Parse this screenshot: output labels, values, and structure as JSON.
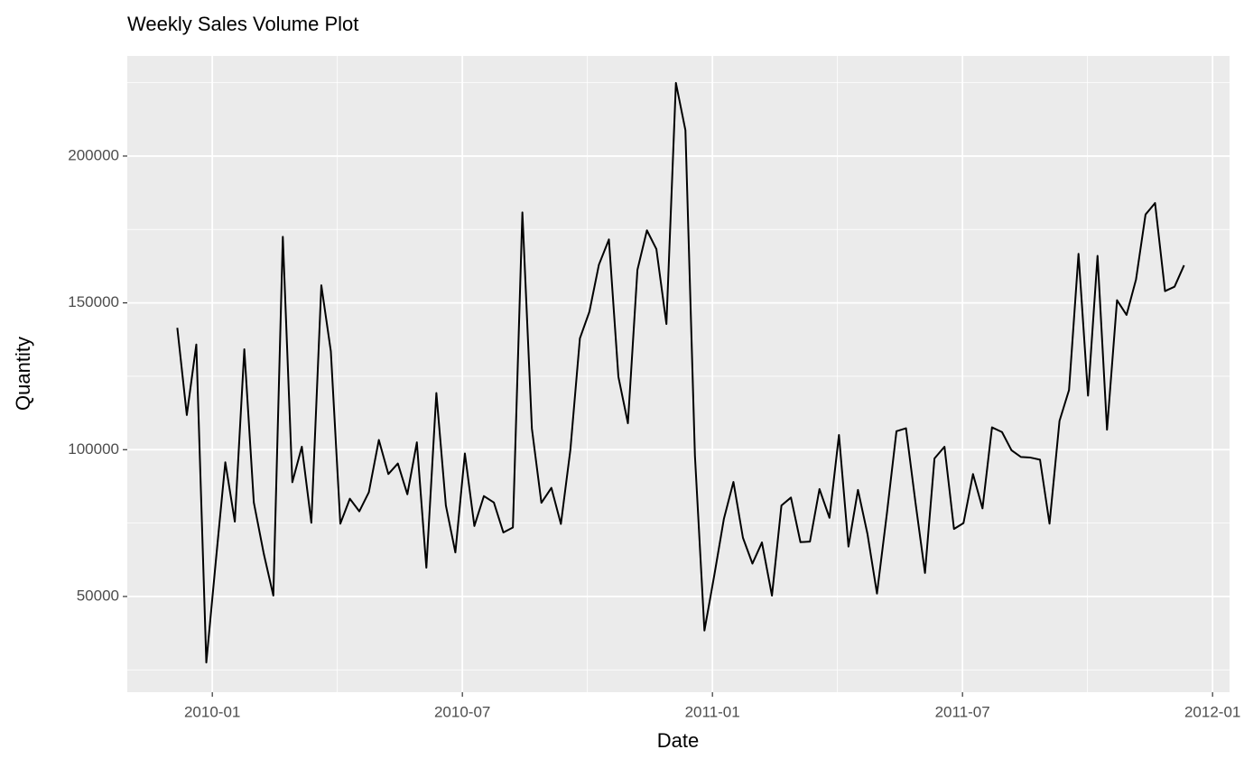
{
  "chart_data": {
    "type": "line",
    "title": "Weekly Sales Volume Plot",
    "x_label": "Date",
    "y_label": "Quantity",
    "color": "#000000",
    "grid": true,
    "xlim": [
      2009.83,
      2012.034
    ],
    "ylim": [
      17400,
      234100
    ],
    "xticks": [
      {
        "value": 2010.0,
        "label": "2010-01"
      },
      {
        "value": 2010.5,
        "label": "2010-07"
      },
      {
        "value": 2011.0,
        "label": "2011-01"
      },
      {
        "value": 2011.5,
        "label": "2011-07"
      },
      {
        "value": 2012.0,
        "label": "2012-01"
      }
    ],
    "yticks": [
      50000,
      100000,
      150000,
      200000
    ],
    "x": [
      2009.93,
      2009.949,
      2009.968,
      2009.988,
      2010.007,
      2010.026,
      2010.045,
      2010.064,
      2010.083,
      2010.103,
      2010.122,
      2010.141,
      2010.16,
      2010.179,
      2010.198,
      2010.218,
      2010.237,
      2010.256,
      2010.275,
      2010.294,
      2010.313,
      2010.333,
      2010.352,
      2010.371,
      2010.39,
      2010.409,
      2010.428,
      2010.448,
      2010.467,
      2010.486,
      2010.505,
      2010.524,
      2010.543,
      2010.563,
      2010.582,
      2010.601,
      2010.62,
      2010.639,
      2010.658,
      2010.678,
      2010.697,
      2010.716,
      2010.735,
      2010.754,
      2010.773,
      2010.793,
      2010.812,
      2010.831,
      2010.85,
      2010.869,
      2010.888,
      2010.908,
      2010.927,
      2010.946,
      2010.965,
      2010.984,
      2011.004,
      2011.023,
      2011.042,
      2011.061,
      2011.08,
      2011.099,
      2011.119,
      2011.138,
      2011.157,
      2011.176,
      2011.195,
      2011.214,
      2011.234,
      2011.253,
      2011.272,
      2011.291,
      2011.31,
      2011.329,
      2011.349,
      2011.368,
      2011.387,
      2011.406,
      2011.425,
      2011.444,
      2011.464,
      2011.483,
      2011.502,
      2011.521,
      2011.54,
      2011.559,
      2011.579,
      2011.598,
      2011.617,
      2011.636,
      2011.655,
      2011.674,
      2011.694,
      2011.713,
      2011.732,
      2011.751,
      2011.77,
      2011.789,
      2011.809,
      2011.828,
      2011.847,
      2011.866,
      2011.885,
      2011.905,
      2011.924,
      2011.943
    ],
    "values": [
      141500,
      111800,
      135800,
      27500,
      62000,
      95700,
      75500,
      134200,
      82000,
      64500,
      50300,
      172500,
      88900,
      101000,
      75100,
      156000,
      133500,
      74800,
      83300,
      79000,
      85500,
      103300,
      91700,
      95300,
      84800,
      102500,
      59800,
      119300,
      81000,
      65000,
      98700,
      74000,
      84200,
      82000,
      71800,
      73500,
      180800,
      107200,
      81900,
      87000,
      74700,
      100000,
      137900,
      147000,
      163000,
      171600,
      124800,
      109000,
      161200,
      174700,
      168300,
      142800,
      224900,
      208800,
      98000,
      38400,
      57500,
      76500,
      89000,
      70000,
      61200,
      68400,
      50300,
      81000,
      83700,
      68500,
      68700,
      86600,
      76800,
      105000,
      67000,
      86300,
      71300,
      51000,
      78500,
      106300,
      107300,
      82000,
      58000,
      97000,
      101000,
      73000,
      75000,
      91700,
      80000,
      107600,
      106000,
      99800,
      97500,
      97300,
      96600,
      74800,
      109800,
      120300,
      166700,
      118400,
      166000,
      106800,
      150900,
      145900,
      158000,
      180100,
      184000,
      154000,
      155500,
      162800
    ]
  }
}
